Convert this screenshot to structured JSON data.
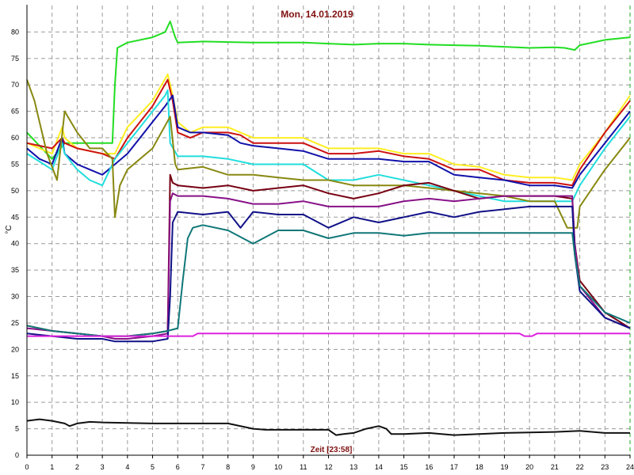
{
  "chart_data": {
    "type": "line",
    "title": "Mon, 14.01.2019",
    "xlabel": "Zeit [23:58]",
    "ylabel": "°C",
    "xlim": [
      0,
      24
    ],
    "ylim": [
      0,
      85
    ],
    "x_ticks": [
      0,
      1,
      2,
      3,
      4,
      5,
      6,
      7,
      8,
      9,
      10,
      11,
      12,
      13,
      14,
      15,
      16,
      17,
      18,
      19,
      20,
      21,
      22,
      23,
      24
    ],
    "y_ticks": [
      0,
      5,
      10,
      15,
      20,
      25,
      30,
      35,
      40,
      45,
      50,
      55,
      60,
      65,
      70,
      75,
      80
    ],
    "grid": true,
    "series": [
      {
        "color": "#22dd22",
        "x": [
          0,
          1,
          1.5,
          2,
          2.5,
          3,
          3.4,
          3.5,
          3.6,
          4,
          5,
          5.5,
          5.7,
          5.9,
          6,
          7,
          8,
          9,
          10,
          11,
          12,
          13,
          14,
          15,
          16,
          17,
          18,
          19,
          20,
          21,
          21.4,
          21.8,
          22,
          23,
          24
        ],
        "y": [
          61,
          56,
          59,
          59,
          59,
          59,
          59,
          70,
          77,
          78,
          79,
          80,
          82,
          79,
          78,
          78.2,
          78.1,
          78,
          78,
          78,
          77.8,
          77.6,
          77.8,
          77.8,
          77.6,
          77.5,
          77.4,
          77.2,
          77,
          77.1,
          77,
          76.6,
          77.5,
          78.5,
          79
        ]
      },
      {
        "color": "#ffee22",
        "x": [
          0,
          0.5,
          1,
          1.4,
          1.5,
          2,
          3,
          3.5,
          4,
          5,
          5.6,
          5.8,
          6,
          6.5,
          7,
          8,
          8.5,
          9,
          10,
          11,
          12,
          13,
          14,
          15,
          16,
          17,
          18,
          19,
          20,
          21,
          21.7,
          22,
          23,
          24
        ],
        "y": [
          59,
          58,
          57,
          62,
          60,
          58,
          57,
          57,
          62,
          67,
          72,
          68,
          63,
          61,
          62,
          62,
          61,
          60,
          60,
          60,
          58,
          58,
          58,
          57,
          57,
          55,
          54.5,
          53,
          52.5,
          52.5,
          52,
          55,
          61,
          68
        ]
      },
      {
        "color": "#cc1111",
        "x": [
          0,
          0.5,
          1,
          1.4,
          1.5,
          2,
          3,
          3.5,
          4,
          5,
          5.6,
          5.8,
          6,
          6.5,
          7,
          8,
          8.5,
          9,
          10,
          11,
          12,
          13,
          14,
          15,
          16,
          17,
          18,
          19,
          20,
          21,
          21.7,
          22,
          23,
          24
        ],
        "y": [
          59,
          58.5,
          58,
          60,
          59,
          58,
          57,
          56,
          60,
          66,
          71,
          67,
          61,
          60,
          61,
          61,
          60.5,
          59,
          59,
          59,
          57,
          57,
          57.5,
          56.5,
          56,
          54,
          54,
          52,
          51.5,
          51.5,
          51,
          54,
          61,
          67
        ]
      },
      {
        "color": "#1111aa",
        "x": [
          0,
          0.5,
          1,
          1.4,
          1.5,
          2,
          2.5,
          3,
          3.5,
          4,
          4.5,
          5,
          5.5,
          5.8,
          6,
          6.5,
          7,
          8,
          8.5,
          9,
          10,
          11,
          12,
          13,
          14,
          15,
          16,
          17,
          18,
          19,
          20,
          21,
          21.7,
          22,
          23,
          24
        ],
        "y": [
          58,
          56,
          55,
          60,
          57,
          55,
          54,
          53,
          55,
          57,
          60,
          63,
          66,
          68,
          62,
          61,
          61,
          60.5,
          59,
          58.5,
          58,
          57.5,
          56,
          56,
          56,
          55.5,
          55.5,
          53,
          52.5,
          52,
          51,
          51,
          50.5,
          53,
          59,
          65
        ]
      },
      {
        "color": "#22dddd",
        "x": [
          0,
          0.5,
          1,
          1.4,
          1.5,
          2,
          2.5,
          3,
          3.5,
          4,
          4.5,
          5,
          5.5,
          5.6,
          5.7,
          6,
          7,
          8,
          9,
          10,
          11,
          12,
          13,
          14,
          15,
          16,
          17,
          18,
          19,
          20,
          21,
          21.7,
          22,
          23,
          24
        ],
        "y": [
          57,
          55.5,
          54,
          59,
          57,
          54,
          52,
          51,
          56,
          59,
          62,
          65,
          68,
          69,
          59,
          56.5,
          56.5,
          56,
          55,
          55,
          55,
          52,
          52,
          53,
          52,
          51,
          50,
          49,
          48,
          48,
          48,
          48,
          51,
          58,
          64
        ]
      },
      {
        "color": "#888811",
        "x": [
          0,
          0.3,
          0.8,
          1.2,
          1.5,
          2,
          2.5,
          3,
          3.4,
          3.5,
          3.7,
          4,
          5,
          5.7,
          5.9,
          6,
          7,
          8,
          9,
          10,
          11,
          12,
          13,
          14,
          15,
          16,
          17,
          18,
          19,
          20,
          21,
          21.5,
          21.9,
          22,
          23,
          24
        ],
        "y": [
          71,
          67,
          57,
          52,
          65,
          61,
          58,
          58,
          56,
          45,
          51,
          54,
          58,
          64,
          55,
          54,
          54.5,
          53,
          53,
          52.5,
          52,
          52,
          51,
          51,
          51,
          50.5,
          50,
          49.5,
          49,
          48,
          48,
          43,
          43,
          47,
          54,
          60
        ]
      },
      {
        "color": "#770011",
        "x": [
          0,
          1,
          2,
          3,
          3.5,
          4,
          5,
          5.6,
          5.7,
          5.8,
          6,
          7,
          8,
          9,
          10,
          11,
          12,
          13,
          14,
          15,
          16,
          17,
          18,
          19,
          20,
          21,
          21.7,
          21.8,
          22,
          23,
          24
        ],
        "y": [
          24.5,
          23.5,
          23,
          22.5,
          22.5,
          22.5,
          23,
          23.5,
          53,
          51.5,
          51,
          50.5,
          51,
          50,
          50.5,
          51,
          49.5,
          48.5,
          49.5,
          51,
          51.5,
          50,
          48.5,
          49,
          49,
          49,
          48.5,
          40,
          33,
          27,
          24
        ]
      },
      {
        "color": "#881188",
        "x": [
          0,
          1,
          2,
          3,
          3.5,
          4,
          5,
          5.6,
          5.7,
          5.8,
          6,
          7,
          8,
          9,
          10,
          11,
          12,
          13,
          14,
          15,
          16,
          17,
          18,
          19,
          20,
          21,
          21.7,
          21.8,
          22,
          23,
          24
        ],
        "y": [
          24,
          23.5,
          23,
          22.5,
          22,
          22,
          22.5,
          23,
          48,
          49.5,
          49,
          49,
          48.5,
          47.5,
          47.5,
          48,
          47,
          47,
          47,
          48,
          48.5,
          48,
          48.5,
          49,
          49,
          49,
          49,
          40,
          32,
          26,
          24
        ]
      },
      {
        "color": "#111188",
        "x": [
          0,
          1,
          2,
          3,
          3.5,
          4,
          5,
          5.6,
          5.7,
          5.8,
          6,
          7,
          8,
          8.5,
          9,
          10,
          11,
          12,
          13,
          14,
          15,
          16,
          17,
          18,
          19,
          20,
          21,
          21.7,
          21.8,
          22,
          23,
          24
        ],
        "y": [
          23,
          22.5,
          22,
          22,
          21.5,
          21.5,
          21.5,
          22,
          30,
          44,
          46,
          45.5,
          46,
          43,
          46,
          45.5,
          45.5,
          43,
          45,
          44,
          45,
          46,
          45,
          46,
          46.5,
          47,
          47,
          47,
          38,
          31,
          26,
          24
        ]
      },
      {
        "color": "#117777",
        "x": [
          0,
          1,
          2,
          3,
          3.5,
          4,
          5,
          5.6,
          6,
          6.2,
          6.4,
          6.6,
          7,
          8,
          9,
          10,
          11,
          12,
          13,
          14,
          15,
          16,
          17,
          18,
          19,
          20,
          21,
          21.7,
          21.8,
          22,
          23,
          24
        ],
        "y": [
          24.5,
          23.5,
          23,
          22.5,
          22.5,
          22.5,
          23,
          23.5,
          24,
          33,
          41,
          43,
          43.5,
          42.5,
          40,
          42.5,
          42.5,
          41,
          42,
          42,
          41.5,
          42,
          42,
          42,
          42,
          42,
          42,
          42,
          38,
          32,
          27,
          25
        ]
      },
      {
        "color": "#dd22dd",
        "x": [
          0,
          2,
          3,
          4,
          5,
          6,
          6.6,
          6.8,
          7,
          10,
          13,
          16,
          19,
          19.6,
          19.8,
          20.1,
          20.3,
          21,
          24
        ],
        "y": [
          22.5,
          22.5,
          22.5,
          22.5,
          22.5,
          22.5,
          22.5,
          23,
          23,
          23,
          23,
          23,
          23,
          23,
          22.5,
          22.5,
          23,
          23,
          23
        ]
      },
      {
        "color": "#111111",
        "x": [
          0,
          0.5,
          1,
          1.5,
          1.7,
          2,
          2.5,
          3,
          4,
          5,
          6,
          7,
          8,
          9,
          9.5,
          10,
          11,
          12,
          12.3,
          12.6,
          13,
          13.5,
          14,
          14.3,
          14.5,
          15,
          16,
          17,
          18,
          19,
          20,
          21,
          22,
          23,
          24
        ],
        "y": [
          6.5,
          6.8,
          6.5,
          6,
          5.5,
          6,
          6.3,
          6.2,
          6.1,
          6,
          6,
          6,
          6,
          5,
          4.8,
          4.8,
          4.8,
          4.8,
          3.8,
          4,
          4.2,
          5,
          5.5,
          5,
          4,
          4,
          4.2,
          3.8,
          4,
          4.2,
          4.3,
          4.4,
          4.6,
          4.2,
          4.2
        ]
      }
    ]
  }
}
